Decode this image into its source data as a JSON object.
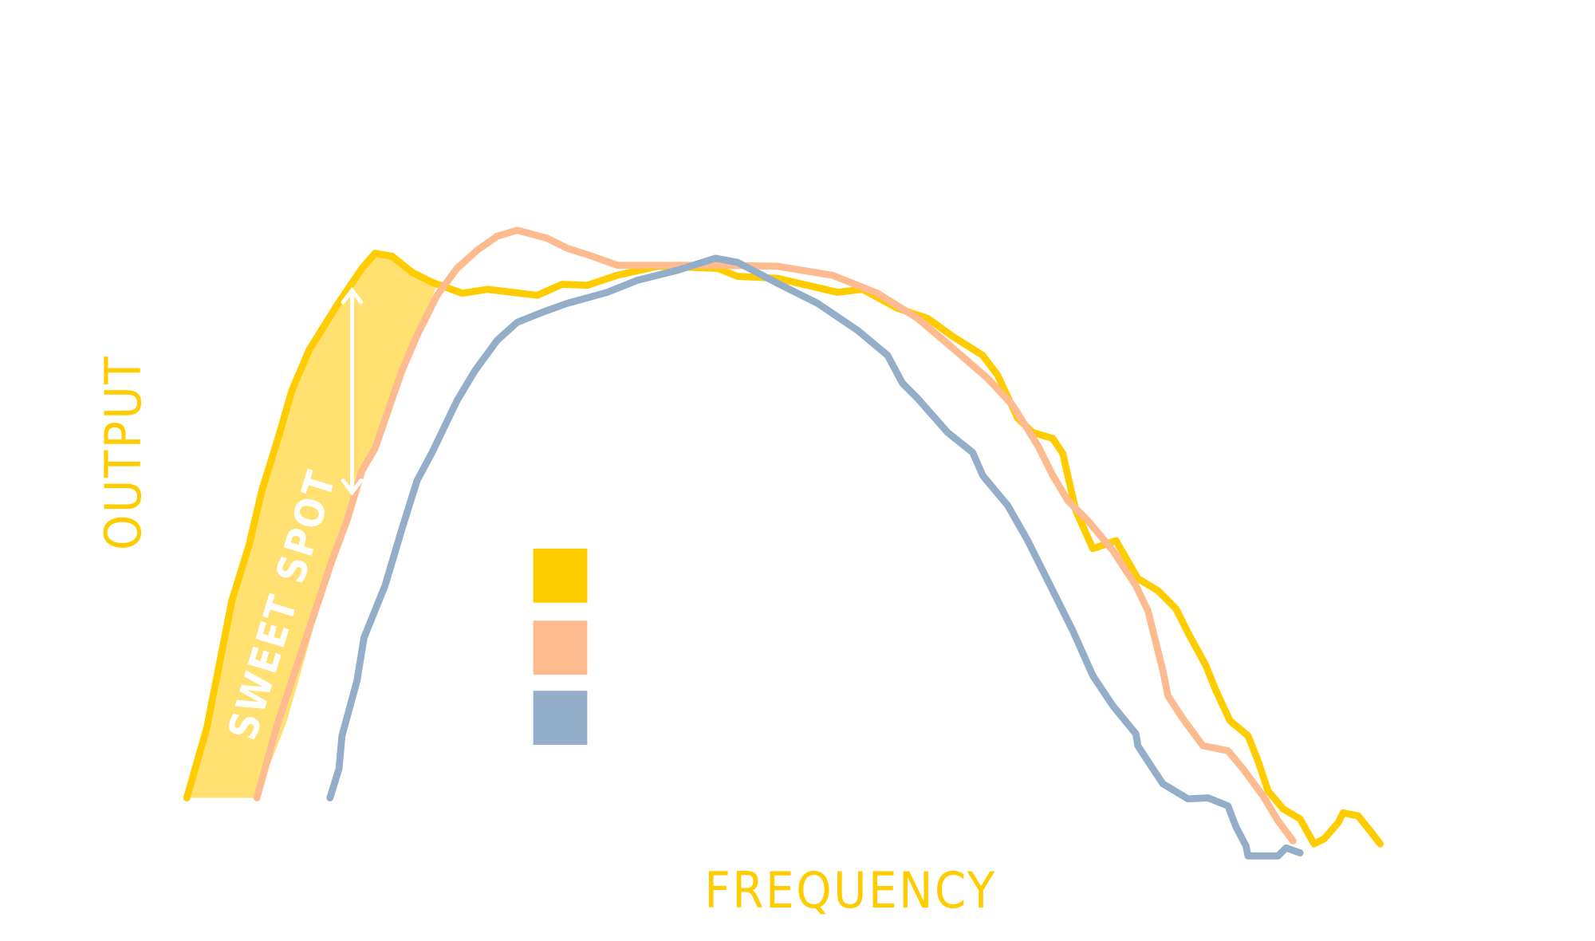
{
  "chart_data": {
    "type": "line",
    "x_label": "FREQUENCY",
    "y_label": "OUTPUT",
    "annotations": [
      "SWEET SPOT"
    ],
    "band_color": "#ffe070",
    "series": [
      {
        "color": "#ffcc00"
      },
      {
        "color": "#ffbb90"
      },
      {
        "color": "#94adc8"
      }
    ]
  }
}
